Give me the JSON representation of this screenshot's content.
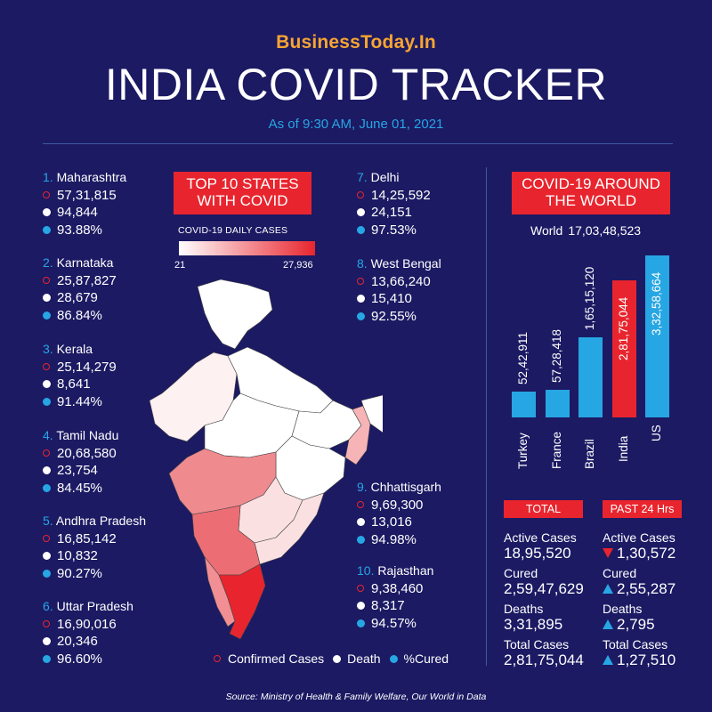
{
  "brand": "BusinessToday.In",
  "title": "INDIA COVID TRACKER",
  "as_of": "As of 9:30 AM, June 01, 2021",
  "colors": {
    "background": "#1c1a63",
    "accent_red": "#e8252e",
    "accent_blue": "#27a6e4",
    "brand_orange": "#f7a531"
  },
  "top10_title": "TOP 10 STATES WITH COVID",
  "map_legend": {
    "title": "COVID-19 DAILY CASES",
    "min": "21",
    "max": "27,936"
  },
  "states": [
    {
      "rank": "1.",
      "name": "Maharashtra",
      "confirmed": "57,31,815",
      "deaths": "94,844",
      "cured": "93.88%"
    },
    {
      "rank": "2.",
      "name": "Karnataka",
      "confirmed": "25,87,827",
      "deaths": "28,679",
      "cured": "86.84%"
    },
    {
      "rank": "3.",
      "name": "Kerala",
      "confirmed": "25,14,279",
      "deaths": "8,641",
      "cured": "91.44%"
    },
    {
      "rank": "4.",
      "name": "Tamil Nadu",
      "confirmed": "20,68,580",
      "deaths": "23,754",
      "cured": "84.45%"
    },
    {
      "rank": "5.",
      "name": "Andhra Pradesh",
      "confirmed": "16,85,142",
      "deaths": "10,832",
      "cured": "90.27%"
    },
    {
      "rank": "6.",
      "name": "Uttar Pradesh",
      "confirmed": "16,90,016",
      "deaths": "20,346",
      "cured": "96.60%"
    },
    {
      "rank": "7.",
      "name": "Delhi",
      "confirmed": "14,25,592",
      "deaths": "24,151",
      "cured": "97.53%"
    },
    {
      "rank": "8.",
      "name": "West Bengal",
      "confirmed": "13,66,240",
      "deaths": "15,410",
      "cured": "92.55%"
    },
    {
      "rank": "9.",
      "name": "Chhattisgarh",
      "confirmed": "9,69,300",
      "deaths": "13,016",
      "cured": "94.98%"
    },
    {
      "rank": "10.",
      "name": "Rajasthan",
      "confirmed": "9,38,460",
      "deaths": "8,317",
      "cured": "94.57%"
    }
  ],
  "legend": {
    "confirmed": "Confirmed Cases",
    "death": "Death",
    "cured": "%Cured"
  },
  "world_title": "COVID-19 AROUND THE WORLD",
  "world": {
    "label": "World",
    "value": "17,03,48,523"
  },
  "chart_data": {
    "type": "bar",
    "title": "COVID-19 AROUND THE WORLD",
    "categories": [
      "Turkey",
      "France",
      "Brazil",
      "India",
      "US"
    ],
    "values": [
      5242911,
      5728418,
      16515120,
      28175044,
      33258664
    ],
    "value_labels": [
      "52,42,911",
      "57,28,418",
      "1,65,15,120",
      "2,81,75,044",
      "3,32,58,664"
    ],
    "highlight": "India",
    "xlabel": "",
    "ylabel": "",
    "ylim": [
      0,
      33258664
    ]
  },
  "totals": {
    "header": "TOTAL",
    "active_label": "Active Cases",
    "active": "18,95,520",
    "cured_label": "Cured",
    "cured": "2,59,47,629",
    "deaths_label": "Deaths",
    "deaths": "3,31,895",
    "total_label": "Total Cases",
    "total": "2,81,75,044"
  },
  "past24": {
    "header": "PAST 24 Hrs",
    "active_label": "Active Cases",
    "active": "1,30,572",
    "cured_label": "Cured",
    "cured": "2,55,287",
    "deaths_label": "Deaths",
    "deaths": "2,795",
    "total_label": "Total Cases",
    "total": "1,27,510"
  },
  "source": "Source: Ministry of Health & Family Welfare, Our World in Data"
}
